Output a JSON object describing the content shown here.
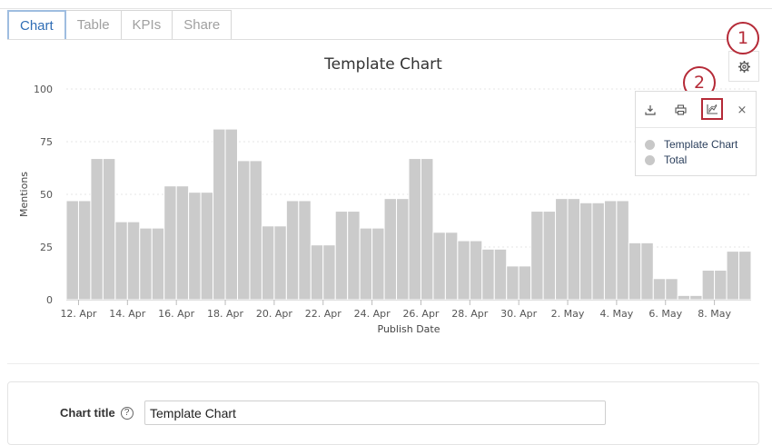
{
  "tabs": [
    {
      "label": "Chart",
      "active": true
    },
    {
      "label": "Table",
      "active": false
    },
    {
      "label": "KPIs",
      "active": false
    },
    {
      "label": "Share",
      "active": false
    }
  ],
  "callouts": {
    "first": "1",
    "second": "2"
  },
  "menu": {
    "icons": [
      "download-icon",
      "print-icon",
      "chart-type-icon"
    ],
    "close_label": "×",
    "legend": [
      {
        "label": "Template Chart"
      },
      {
        "label": "Total"
      }
    ]
  },
  "settings": {
    "chart_title_label": "Chart title",
    "help_label": "?",
    "chart_title_value": "Template Chart"
  },
  "colors": {
    "accent": "#2f6db5",
    "callout": "#b52a37",
    "bar": "#cbcbcb",
    "legend_text": "#2b3f5c"
  },
  "chart_data": {
    "type": "bar",
    "title": "Template Chart",
    "xlabel": "Publish Date",
    "ylabel": "Mentions",
    "ylim": [
      0,
      100
    ],
    "yticks": [
      0,
      25,
      50,
      75,
      100
    ],
    "grid": true,
    "xticklabels": [
      "12. Apr",
      "14. Apr",
      "16. Apr",
      "18. Apr",
      "20. Apr",
      "22. Apr",
      "24. Apr",
      "26. Apr",
      "28. Apr",
      "30. Apr",
      "2. May",
      "4. May",
      "6. May",
      "8. May"
    ],
    "categories": [
      "12. Apr",
      "13. Apr",
      "14. Apr",
      "15. Apr",
      "16. Apr",
      "17. Apr",
      "18. Apr",
      "19. Apr",
      "20. Apr",
      "21. Apr",
      "22. Apr",
      "23. Apr",
      "24. Apr",
      "25. Apr",
      "26. Apr",
      "27. Apr",
      "28. Apr",
      "29. Apr",
      "30. Apr",
      "1. May",
      "2. May",
      "3. May",
      "4. May",
      "5. May",
      "6. May",
      "7. May",
      "8. May",
      "9. May"
    ],
    "series": [
      {
        "name": "Template Chart",
        "values": [
          47,
          67,
          37,
          34,
          54,
          51,
          81,
          66,
          35,
          47,
          26,
          42,
          34,
          48,
          67,
          32,
          28,
          24,
          16,
          42,
          48,
          46,
          47,
          27,
          10,
          2,
          14,
          23
        ]
      },
      {
        "name": "Total",
        "values": [
          47,
          67,
          37,
          34,
          54,
          51,
          81,
          66,
          35,
          47,
          26,
          42,
          34,
          48,
          67,
          32,
          28,
          24,
          16,
          42,
          48,
          46,
          47,
          27,
          10,
          2,
          14,
          23
        ]
      }
    ]
  }
}
